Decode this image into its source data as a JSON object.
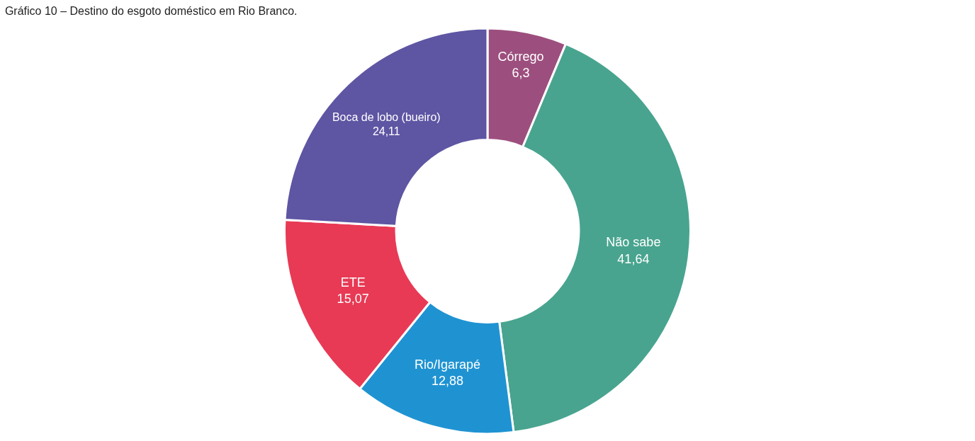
{
  "chart_data": {
    "type": "donut",
    "title": "Gráfico 10 – Destino do esgoto doméstico em Rio Branco.",
    "categories": [
      "Córrego",
      "Não sabe",
      "Rio/Igarapé",
      "ETE",
      "Boca de lobo (bueiro)"
    ],
    "values": [
      6.3,
      41.64,
      12.88,
      15.07,
      24.11
    ],
    "value_labels": [
      "6,3",
      "41,64",
      "12,88",
      "15,07",
      "24,11"
    ],
    "colors": [
      "#9c4f7e",
      "#48a48f",
      "#1f93d2",
      "#e83a55",
      "#5e55a3"
    ],
    "legend": false
  }
}
